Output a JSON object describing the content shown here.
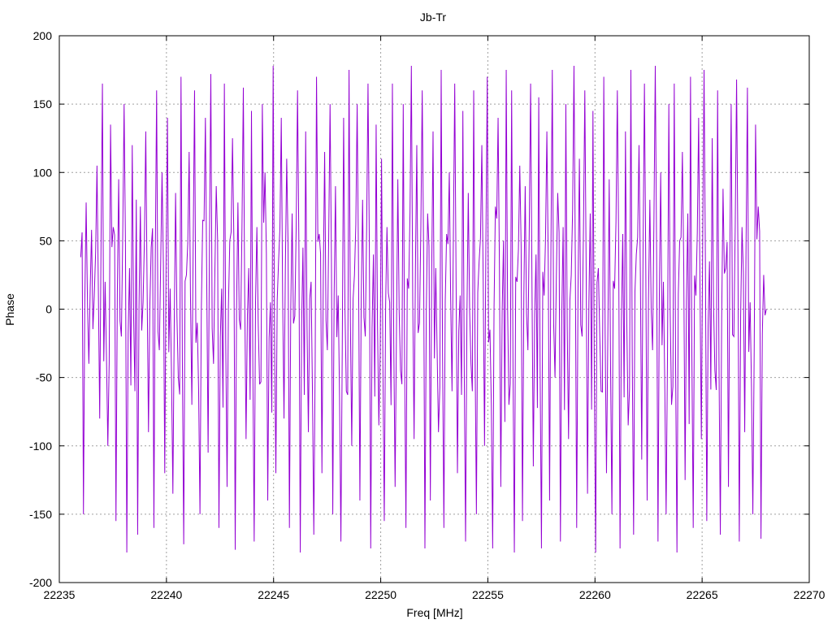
{
  "chart_data": {
    "type": "line",
    "title": "Jb-Tr",
    "xlabel": "Freq [MHz]",
    "ylabel": "Phase",
    "xlim": [
      22235,
      22270
    ],
    "ylim": [
      -200,
      200
    ],
    "x_ticks": [
      22235,
      22240,
      22245,
      22250,
      22255,
      22260,
      22265,
      22270
    ],
    "y_ticks": [
      -200,
      -150,
      -100,
      -50,
      0,
      50,
      100,
      150,
      200
    ],
    "grid": true,
    "line_color": "#9400d3",
    "series": [
      {
        "x_start": 22236.0,
        "x_end": 22268.0,
        "values": [
          38,
          -150,
          78,
          -40,
          58,
          10,
          105,
          -80,
          165,
          20,
          -100,
          135,
          60,
          -155,
          95,
          -20,
          150,
          -178,
          30,
          120,
          -60,
          -165,
          75,
          5,
          130,
          -90,
          45,
          -160,
          160,
          -30,
          100,
          -120,
          140,
          15,
          -135,
          85,
          -50,
          170,
          -172,
          25,
          115,
          -70,
          160,
          -10,
          -150,
          65,
          140,
          -105,
          172,
          -40,
          90,
          -160,
          15,
          165,
          -130,
          50,
          125,
          -176,
          78,
          -15,
          162,
          -95,
          30,
          145,
          -170,
          60,
          -55,
          150,
          100,
          -140,
          5,
          178,
          -120,
          35,
          140,
          -80,
          110,
          -160,
          70,
          -5,
          160,
          -178,
          45,
          130,
          -90,
          20,
          -165,
          170,
          55,
          -120,
          115,
          -30,
          150,
          -150,
          90,
          10,
          -170,
          140,
          -60,
          175,
          -100,
          25,
          150,
          -140,
          80,
          -20,
          165,
          -175,
          40,
          135,
          -85,
          110,
          -155,
          60,
          5,
          165,
          -130,
          95,
          -45,
          150,
          -160,
          15,
          178,
          -95,
          120,
          -10,
          160,
          -175,
          70,
          -140,
          130,
          30,
          -90,
          175,
          -160,
          55,
          100,
          -60,
          165,
          -120,
          10,
          145,
          -170,
          85,
          -40,
          160,
          -150,
          35,
          120,
          -100,
          170,
          -15,
          -175,
          75,
          140,
          -130,
          50,
          175,
          -70,
          160,
          -178,
          20,
          105,
          -155,
          90,
          -30,
          165,
          -115,
          40,
          155,
          -175,
          10,
          130,
          -140,
          175,
          -50,
          85,
          -170,
          60,
          150,
          -95,
          25,
          178,
          -160,
          110,
          -20,
          160,
          -135,
          70,
          145,
          -178,
          30,
          -60,
          170,
          -120,
          95,
          -150,
          15,
          160,
          -175,
          55,
          130,
          -85,
          175,
          -165,
          40,
          120,
          -110,
          165,
          -140,
          80,
          -30,
          178,
          -170,
          100,
          20,
          -150,
          150,
          -70,
          165,
          -178,
          50,
          115,
          -125,
          70,
          170,
          -160,
          10,
          140,
          -95,
          175,
          -155,
          35,
          125,
          -45,
          160,
          -165,
          88,
          30,
          -130,
          150,
          -20,
          168,
          -170,
          60,
          -90,
          162,
          5,
          -150,
          135,
          75,
          -168,
          25,
          0
        ]
      }
    ]
  }
}
